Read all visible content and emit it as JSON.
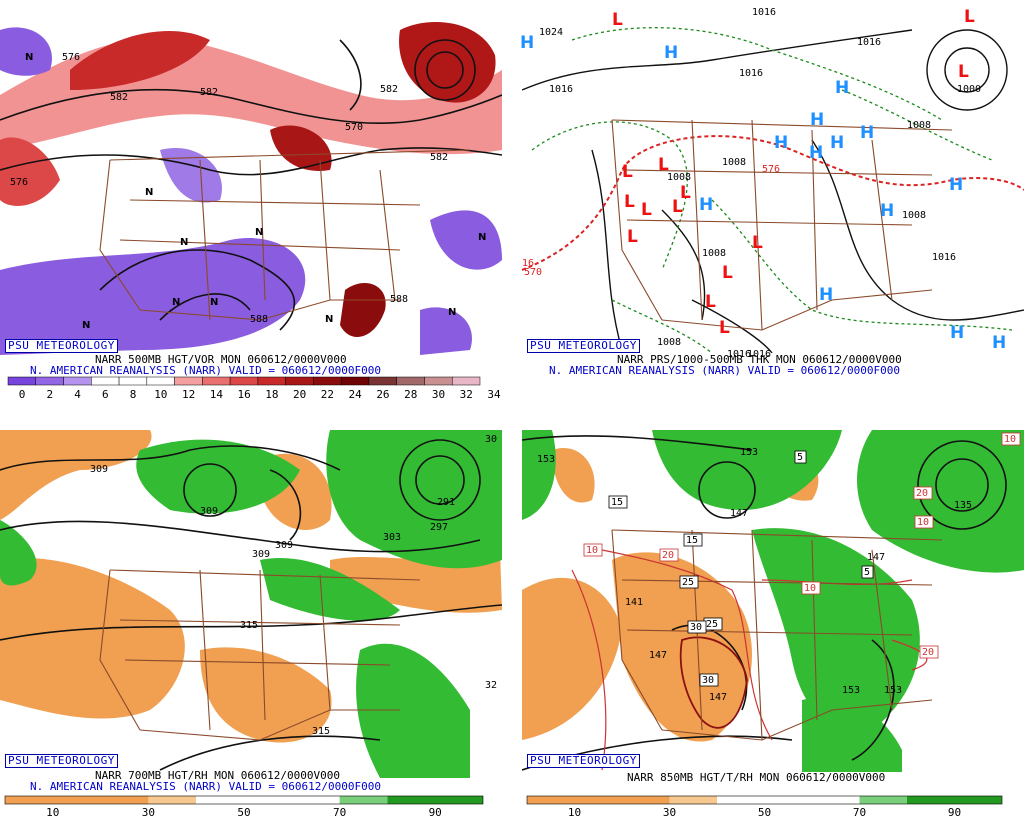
{
  "watermark": "PSU METEOROLOGY",
  "panels": {
    "tl": {
      "caption1": "NARR 500MB HGT/VOR MON 060612/0000V000",
      "caption2": "N. AMERICAN REANALYSIS (NARR) VALID = 060612/0000F000",
      "colorbar_ticks": [
        "0",
        "2",
        "4",
        "6",
        "8",
        "10",
        "12",
        "14",
        "16",
        "18",
        "20",
        "22",
        "24",
        "26",
        "28",
        "30",
        "32",
        "34"
      ],
      "colorbar_colors": [
        "#7744dd",
        "#9366e6",
        "#b494ee",
        "#ffffff",
        "#ffffff",
        "#ffffff",
        "#f4a0a0",
        "#e87070",
        "#dc4848",
        "#c82a2a",
        "#a81616",
        "#8a0c0c",
        "#6e0404",
        "#7a3434",
        "#a06868",
        "#c89090",
        "#e8b6c6"
      ],
      "contour_labels": [
        "576",
        "582",
        "582",
        "582",
        "576",
        "570",
        "582",
        "588",
        "588"
      ],
      "centers": [
        "N",
        "N",
        "N",
        "N",
        "N",
        "N",
        "N",
        "N",
        "N",
        "N"
      ]
    },
    "tr": {
      "caption1": "NARR PRS/1000-500MB THK MON 060612/0000V000",
      "caption2": "N. AMERICAN REANALYSIS (NARR) VALID = 060612/0000F000",
      "isobar_labels": [
        "1024",
        "1016",
        "1016",
        "1016",
        "1016",
        "1016",
        "1000",
        "1008",
        "1008",
        "1008",
        "1008",
        "1008",
        "1016",
        "1008",
        "1016"
      ],
      "thickness_labels": [
        "576",
        "570",
        "16"
      ],
      "highs": [
        "H",
        "H",
        "H",
        "H",
        "H",
        "H",
        "H",
        "H",
        "H",
        "H",
        "H",
        "H",
        "H",
        "H"
      ],
      "lows": [
        "L",
        "L",
        "L",
        "L",
        "L",
        "L",
        "L",
        "L",
        "L",
        "L",
        "L",
        "L",
        "L",
        "L"
      ]
    },
    "bl": {
      "caption1": "NARR 700MB HGT/RH MON 060612/0000V000",
      "caption2": "N. AMERICAN REANALYSIS (NARR) VALID = 060612/0000F000",
      "colorbar_ticks": [
        "10",
        "30",
        "50",
        "70",
        "90"
      ],
      "height_labels": [
        "309",
        "309",
        "309",
        "309",
        "291",
        "297",
        "303",
        "315",
        "315",
        "30",
        "32"
      ]
    },
    "br": {
      "caption1": "NARR 850MB HGT/T/RH MON 060612/0000V000",
      "colorbar_ticks": [
        "10",
        "30",
        "50",
        "70",
        "90"
      ],
      "height_labels": [
        "153",
        "153",
        "147",
        "141",
        "147",
        "147",
        "153",
        "135",
        "147",
        "153"
      ],
      "temp_labels": [
        "5",
        "15",
        "15",
        "25",
        "25",
        "30",
        "30",
        "20",
        "10",
        "10",
        "10",
        "20",
        "20",
        "5",
        "10"
      ]
    }
  },
  "colors": {
    "state_lines": "#8b4a2b",
    "height_contours": "#111111",
    "thickness_contours": "#dd2222",
    "isobar_green": "#1a8a1a",
    "high_symbol": "#1e90ff",
    "low_symbol": "#ee1111",
    "rh_moist": "#33bb33",
    "rh_dry": "#f0a050",
    "caption_blue": "#0000cc"
  }
}
